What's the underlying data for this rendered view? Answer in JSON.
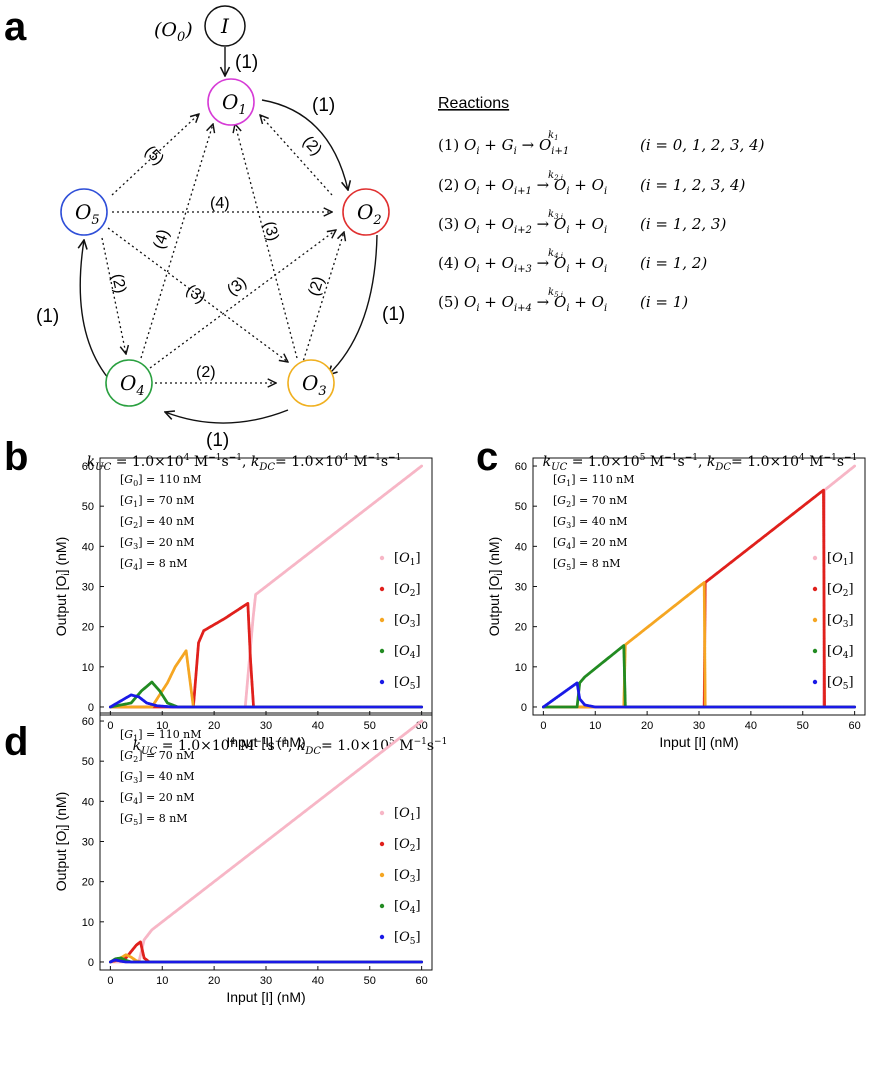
{
  "panel_a": {
    "letter": "a",
    "reactions_title": "Reactions",
    "input_prefix": "(O",
    "input_prefix_sub": "0",
    "input_prefix_end": ")",
    "input_node": "I",
    "edge_label_1": "(1)",
    "edge_labels": {
      "e2": "(2)",
      "e3": "(3)",
      "e4": "(4)",
      "e5": "(5)"
    },
    "nodes": [
      {
        "id": "O1",
        "base": "O",
        "sub": "1",
        "color": "#d63bd6"
      },
      {
        "id": "O2",
        "base": "O",
        "sub": "2",
        "color": "#e03030"
      },
      {
        "id": "O3",
        "base": "O",
        "sub": "3",
        "color": "#f0b020"
      },
      {
        "id": "O4",
        "base": "O",
        "sub": "4",
        "color": "#2aa040"
      },
      {
        "id": "O5",
        "base": "O",
        "sub": "5",
        "color": "#2f4fd8"
      }
    ],
    "reactions": [
      {
        "num": "(1)",
        "lhs": "O",
        "lhs_sub": "i",
        "plus": "G",
        "plus_sub": "i",
        "k": "k",
        "k_sub": "1",
        "rhs": "O",
        "rhs_sub": "i+1",
        "rhs2": "",
        "rhs2_sub": "",
        "range": "(i = 0, 1, 2, 3, 4)"
      },
      {
        "num": "(2)",
        "lhs": "O",
        "lhs_sub": "i",
        "plus": "O",
        "plus_sub": "i+1",
        "k": "k",
        "k_sub": "2,i",
        "rhs": "O",
        "rhs_sub": "i",
        "rhs2": "O",
        "rhs2_sub": "i",
        "range": "(i = 1, 2, 3, 4)"
      },
      {
        "num": "(3)",
        "lhs": "O",
        "lhs_sub": "i",
        "plus": "O",
        "plus_sub": "i+2",
        "k": "k",
        "k_sub": "3,i",
        "rhs": "O",
        "rhs_sub": "i",
        "rhs2": "O",
        "rhs2_sub": "i",
        "range": "(i = 1, 2, 3)"
      },
      {
        "num": "(4)",
        "lhs": "O",
        "lhs_sub": "i",
        "plus": "O",
        "plus_sub": "i+3",
        "k": "k",
        "k_sub": "4,i",
        "rhs": "O",
        "rhs_sub": "i",
        "rhs2": "O",
        "rhs2_sub": "i",
        "range": "(i = 1, 2)"
      },
      {
        "num": "(5)",
        "lhs": "O",
        "lhs_sub": "i",
        "plus": "O",
        "plus_sub": "i+4",
        "k": "k",
        "k_sub": "5,i",
        "rhs": "O",
        "rhs_sub": "i",
        "rhs2": "O",
        "rhs2_sub": "i",
        "range": "(i = 1)"
      }
    ]
  },
  "chart_data": [
    {
      "letter": "b",
      "type": "scatter",
      "title": {
        "k1": "k",
        "k1_sub": "UC",
        "v1": " = 1.0×10",
        "e1": "4",
        "u1": " M",
        "u1e": "−1",
        "u1b": "s",
        "u1be": "−1",
        "sep": ", ",
        "k2": "k",
        "k2_sub": "DC",
        "v2": "= 1.0×10",
        "e2": "4",
        "u2": " M",
        "u2e": "−1",
        "u2b": "s",
        "u2be": "−1"
      },
      "xlabel": "Input [I] (nM)",
      "ylabel": "Output [O",
      "ylabel_sub": "i",
      "ylabel_end": "] (nM)",
      "xlim": [
        -2,
        62
      ],
      "ylim": [
        -2,
        62
      ],
      "xticks": [
        0,
        10,
        20,
        30,
        40,
        50,
        60
      ],
      "yticks": [
        0,
        10,
        20,
        30,
        40,
        50,
        60
      ],
      "grid": false,
      "legend_position": "right",
      "annotations": [
        {
          "base": "G",
          "sub": "0",
          "value": " = 110 nM"
        },
        {
          "base": "G",
          "sub": "1",
          "value": " = 70 nM"
        },
        {
          "base": "G",
          "sub": "2",
          "value": " = 40 nM"
        },
        {
          "base": "G",
          "sub": "3",
          "value": " = 20 nM"
        },
        {
          "base": "G",
          "sub": "4",
          "value": " = 8 nM"
        }
      ],
      "series": [
        {
          "name": "O",
          "name_sub": "1",
          "color": "#f7b6c6",
          "points": [
            [
              0,
              0
            ],
            [
              26,
              0
            ],
            [
              27.5,
              22
            ],
            [
              28,
              28
            ],
            [
              35,
              35
            ],
            [
              45,
              45
            ],
            [
              60,
              60
            ]
          ]
        },
        {
          "name": "O",
          "name_sub": "2",
          "color": "#e0201c",
          "points": [
            [
              0,
              0
            ],
            [
              14.8,
              0
            ],
            [
              16,
              0
            ],
            [
              17,
              16
            ],
            [
              18,
              19
            ],
            [
              22,
              22
            ],
            [
              26.5,
              25.8
            ],
            [
              27,
              12
            ],
            [
              27.6,
              0
            ],
            [
              60,
              0
            ]
          ]
        },
        {
          "name": "O",
          "name_sub": "3",
          "color": "#f5a623",
          "points": [
            [
              0,
              0
            ],
            [
              8,
              0
            ],
            [
              11,
              6
            ],
            [
              12.5,
              10
            ],
            [
              14.6,
              14
            ],
            [
              15.2,
              8
            ],
            [
              16,
              0
            ],
            [
              60,
              0
            ]
          ]
        },
        {
          "name": "O",
          "name_sub": "4",
          "color": "#228b22",
          "points": [
            [
              0,
              0
            ],
            [
              4,
              1
            ],
            [
              6,
              4
            ],
            [
              8,
              6.2
            ],
            [
              9.5,
              4
            ],
            [
              11,
              1
            ],
            [
              13,
              0
            ],
            [
              60,
              0
            ]
          ]
        },
        {
          "name": "O",
          "name_sub": "5",
          "color": "#1a1ae6",
          "points": [
            [
              0,
              0
            ],
            [
              2,
              1.5
            ],
            [
              4,
              3
            ],
            [
              5.5,
              2.5
            ],
            [
              7,
              1
            ],
            [
              9,
              0.3
            ],
            [
              12,
              0
            ],
            [
              60,
              0
            ]
          ]
        }
      ]
    },
    {
      "letter": "c",
      "type": "scatter",
      "title": {
        "k1": "k",
        "k1_sub": "UC",
        "v1": " = 1.0×10",
        "e1": "5",
        "u1": " M",
        "u1e": "−1",
        "u1b": "s",
        "u1be": "−1",
        "sep": ", ",
        "k2": "k",
        "k2_sub": "DC",
        "v2": "= 1.0×10",
        "e2": "4",
        "u2": " M",
        "u2e": "−1",
        "u2b": "s",
        "u2be": "−1"
      },
      "xlabel": "Input [I] (nM)",
      "ylabel": "Output [O",
      "ylabel_sub": "i",
      "ylabel_end": "] (nM)",
      "xlim": [
        -2,
        62
      ],
      "ylim": [
        -2,
        62
      ],
      "xticks": [
        0,
        10,
        20,
        30,
        40,
        50,
        60
      ],
      "yticks": [
        0,
        10,
        20,
        30,
        40,
        50,
        60
      ],
      "grid": false,
      "legend_position": "right",
      "annotations": [
        {
          "base": "G",
          "sub": "1",
          "value": " = 110 nM"
        },
        {
          "base": "G",
          "sub": "2",
          "value": " = 70 nM"
        },
        {
          "base": "G",
          "sub": "3",
          "value": " = 40 nM"
        },
        {
          "base": "G",
          "sub": "4",
          "value": " = 20 nM"
        },
        {
          "base": "G",
          "sub": "5",
          "value": " = 8 nM"
        }
      ],
      "series": [
        {
          "name": "O",
          "name_sub": "1",
          "color": "#f7b6c6",
          "points": [
            [
              0,
              0
            ],
            [
              54,
              0
            ],
            [
              54.2,
              54
            ],
            [
              60,
              60
            ]
          ]
        },
        {
          "name": "O",
          "name_sub": "2",
          "color": "#e0201c",
          "points": [
            [
              0,
              0
            ],
            [
              31,
              0
            ],
            [
              31.2,
              31
            ],
            [
              54,
              54
            ],
            [
              54.2,
              0
            ],
            [
              60,
              0
            ]
          ]
        },
        {
          "name": "O",
          "name_sub": "3",
          "color": "#f5a623",
          "points": [
            [
              0,
              0
            ],
            [
              15.5,
              0
            ],
            [
              15.8,
              15.5
            ],
            [
              31,
              31
            ],
            [
              31.2,
              0
            ],
            [
              60,
              0
            ]
          ]
        },
        {
          "name": "O",
          "name_sub": "4",
          "color": "#228b22",
          "points": [
            [
              0,
              0
            ],
            [
              6.5,
              0
            ],
            [
              7,
              6
            ],
            [
              8,
              7.5
            ],
            [
              15.5,
              15.3
            ],
            [
              15.8,
              0
            ],
            [
              60,
              0
            ]
          ]
        },
        {
          "name": "O",
          "name_sub": "5",
          "color": "#1a1ae6",
          "points": [
            [
              0,
              0
            ],
            [
              6.5,
              6
            ],
            [
              7,
              2
            ],
            [
              8,
              0.5
            ],
            [
              10,
              0
            ],
            [
              60,
              0
            ]
          ]
        }
      ]
    },
    {
      "letter": "d",
      "type": "scatter",
      "title": {
        "k1": "k",
        "k1_sub": "UC",
        "v1": " = 1.0×10",
        "e1": "4",
        "u1": " M",
        "u1e": "−1",
        "u1b": "s",
        "u1be": "−1",
        "sep": ", ",
        "k2": "k",
        "k2_sub": "DC",
        "v2": "= 1.0×10",
        "e2": "5",
        "u2": " M",
        "u2e": "−1",
        "u2b": "s",
        "u2be": "−1"
      },
      "xlabel": "Input [I] (nM)",
      "ylabel": "Output [O",
      "ylabel_sub": "i",
      "ylabel_end": "] (nM)",
      "xlim": [
        -2,
        62
      ],
      "ylim": [
        -2,
        62
      ],
      "xticks": [
        0,
        10,
        20,
        30,
        40,
        50,
        60
      ],
      "yticks": [
        0,
        10,
        20,
        30,
        40,
        50,
        60
      ],
      "grid": false,
      "legend_position": "right",
      "annotations": [
        {
          "base": "G",
          "sub": "1",
          "value": " = 110 nM"
        },
        {
          "base": "G",
          "sub": "2",
          "value": " = 70 nM"
        },
        {
          "base": "G",
          "sub": "3",
          "value": " = 40 nM"
        },
        {
          "base": "G",
          "sub": "4",
          "value": " = 20 nM"
        },
        {
          "base": "G",
          "sub": "5",
          "value": " = 8 nM"
        }
      ],
      "series": [
        {
          "name": "O",
          "name_sub": "1",
          "color": "#f7b6c6",
          "points": [
            [
              0,
              0
            ],
            [
              5.5,
              0
            ],
            [
              6.5,
              5.5
            ],
            [
              8,
              8
            ],
            [
              30,
              30
            ],
            [
              60,
              60
            ]
          ]
        },
        {
          "name": "O",
          "name_sub": "2",
          "color": "#e0201c",
          "points": [
            [
              0,
              0
            ],
            [
              3,
              1
            ],
            [
              5,
              4.2
            ],
            [
              5.8,
              5
            ],
            [
              6.5,
              1
            ],
            [
              7.5,
              0
            ],
            [
              60,
              0
            ]
          ]
        },
        {
          "name": "O",
          "name_sub": "3",
          "color": "#f5a623",
          "points": [
            [
              0,
              0
            ],
            [
              2,
              1
            ],
            [
              3,
              1.8
            ],
            [
              4,
              1.2
            ],
            [
              5,
              0.3
            ],
            [
              6,
              0
            ],
            [
              60,
              0
            ]
          ]
        },
        {
          "name": "O",
          "name_sub": "4",
          "color": "#228b22",
          "points": [
            [
              0,
              0
            ],
            [
              1,
              0.8
            ],
            [
              2,
              1
            ],
            [
              3,
              0.4
            ],
            [
              4,
              0
            ],
            [
              60,
              0
            ]
          ]
        },
        {
          "name": "O",
          "name_sub": "5",
          "color": "#1a1ae6",
          "points": [
            [
              0,
              0
            ],
            [
              0.5,
              0.3
            ],
            [
              1,
              0.5
            ],
            [
              2,
              0.2
            ],
            [
              3,
              0
            ],
            [
              60,
              0
            ]
          ]
        }
      ]
    }
  ]
}
